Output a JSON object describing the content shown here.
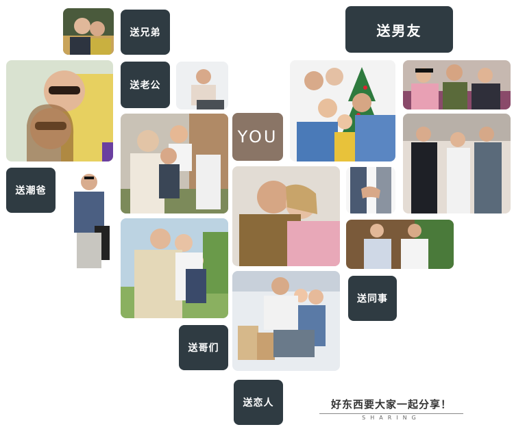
{
  "labels": {
    "brother": "送兄弟",
    "boyfriend": "送男友",
    "elder": "送老公",
    "dad": "送潮爸",
    "colleague": "送同事",
    "buddies": "送哥们",
    "lover": "送恋人"
  },
  "center": "YOU",
  "footer": {
    "slogan": "好东西要大家一起分享！",
    "sub": "SHARING"
  },
  "colors": {
    "label_bg": "#2f3b42",
    "you_bg": "#8a7566"
  }
}
